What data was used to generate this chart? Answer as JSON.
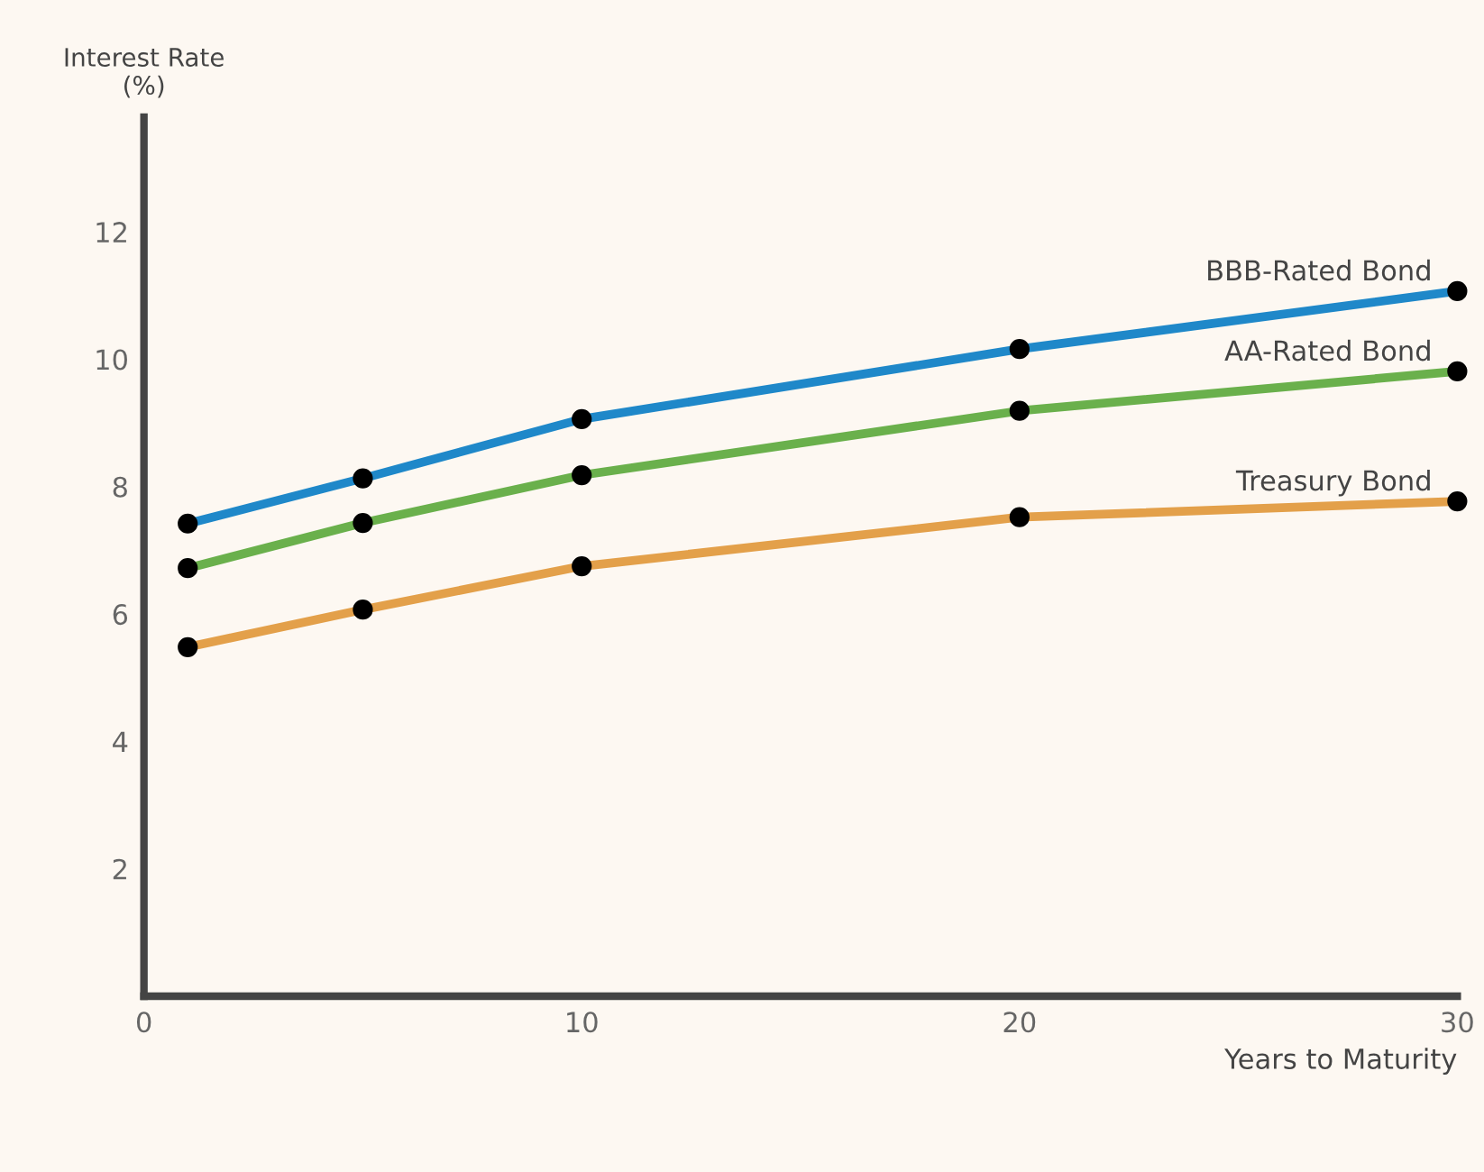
{
  "chart_data": {
    "type": "line",
    "ylabel": "Interest Rate\n(%)",
    "xlabel": "Years to Maturity",
    "x": [
      1,
      5,
      10,
      20,
      30
    ],
    "series": [
      {
        "name": "BBB-Rated Bond",
        "color": "#1f88c9",
        "values": [
          7.42,
          8.13,
          9.06,
          10.16,
          11.07
        ]
      },
      {
        "name": "AA-Rated Bond",
        "color": "#6ab04c",
        "values": [
          6.72,
          7.43,
          8.18,
          9.19,
          9.81
        ]
      },
      {
        "name": "Treasury Bond",
        "color": "#e3a04a",
        "values": [
          5.48,
          6.07,
          6.75,
          7.52,
          7.77
        ]
      }
    ],
    "xlim": [
      0,
      30
    ],
    "xticks": [
      0,
      10,
      20,
      30
    ],
    "ylim": [
      0,
      13.8
    ],
    "yticks": [
      2,
      4,
      6,
      8,
      10,
      12
    ],
    "marker": "circle",
    "line_style": "solid",
    "grid": false,
    "legend": false
  }
}
